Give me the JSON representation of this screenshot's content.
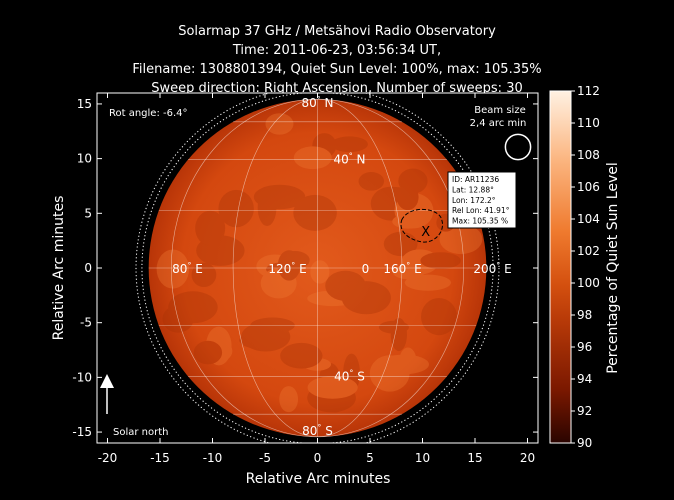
{
  "title_lines": [
    "Solarmap 37 GHz / Metsähovi Radio Observatory",
    "Time: 2011-06-23, 03:56:34 UT,",
    "Filename: 1308801394, Quiet Sun Level: 100%, max: 105.35%",
    "Sweep direction: Right Ascension, Number of sweeps: 30"
  ],
  "chart_data": {
    "type": "heatmap",
    "xlabel": "Relative Arc minutes",
    "ylabel": "Relative Arc minutes",
    "xlim": [
      -21,
      21
    ],
    "ylim": [
      -16,
      16
    ],
    "x_ticks": [
      -20,
      -15,
      -10,
      -5,
      0,
      5,
      10,
      15,
      20
    ],
    "y_ticks": [
      -15,
      -10,
      -5,
      0,
      5,
      10,
      15
    ],
    "solar_radius_arcmin": 15.75,
    "colorbar": {
      "label": "Percentage of Quiet Sun Level",
      "min": 90,
      "max": 112,
      "ticks": [
        90,
        92,
        94,
        96,
        98,
        100,
        102,
        104,
        106,
        108,
        110,
        112
      ]
    },
    "rot_angle": "Rot angle: -6.4°",
    "beam_size": {
      "text_line1": "Beam size",
      "text_line2": "2,4 arc min",
      "arcmin": 2.4
    },
    "grid_labels": {
      "lat": [
        {
          "deg": "80",
          "dir": "N",
          "value": 80
        },
        {
          "deg": "40",
          "dir": "N",
          "value": 40
        },
        {
          "deg": "40",
          "dir": "S",
          "value": -40
        },
        {
          "deg": "80",
          "dir": "S",
          "value": -80
        }
      ],
      "lon": [
        {
          "deg": "80",
          "dir": "E",
          "value": 80
        },
        {
          "deg": "120",
          "dir": "E",
          "value": 120
        },
        {
          "deg": "160",
          "dir": "E",
          "value": 160
        },
        {
          "deg": "200",
          "dir": "E",
          "value": 200
        }
      ],
      "lon_marker": "0"
    },
    "active_region": {
      "x": 10.5,
      "y": 3.3,
      "marker": "X",
      "info": [
        "ID: AR11236",
        "Lat: 12.88°",
        "Lon: 172.2°",
        "Rel Lon: 41.91°",
        "Max: 105.35 %"
      ]
    },
    "solar_north_label": "Solar north"
  }
}
